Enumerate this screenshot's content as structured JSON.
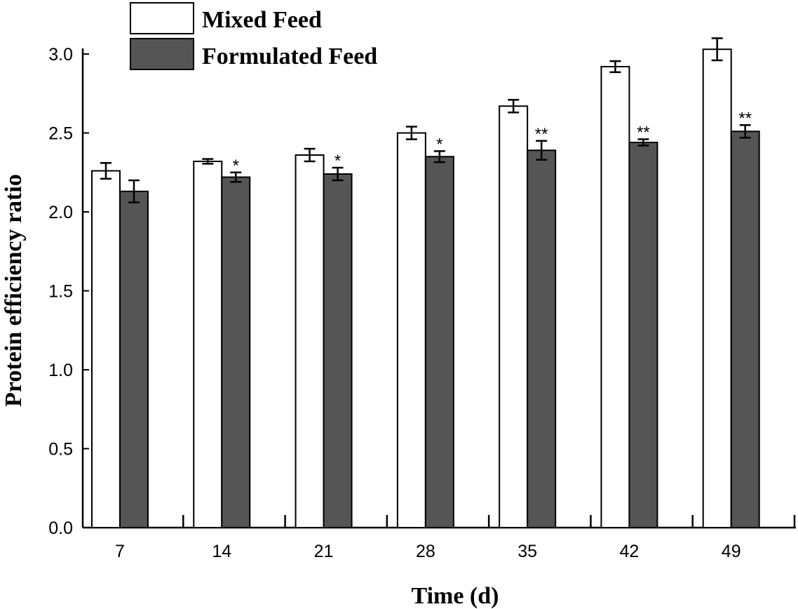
{
  "chart_data": {
    "type": "bar",
    "title": "",
    "xlabel": "Time (d)",
    "ylabel": "Protein efficiency ratio",
    "categories": [
      "7",
      "14",
      "21",
      "28",
      "35",
      "42",
      "49"
    ],
    "ylim": [
      0,
      3.0
    ],
    "yticks": [
      "0.0",
      "0.5",
      "1.0",
      "1.5",
      "2.0",
      "2.5",
      "3.0"
    ],
    "legend_position": "top-left",
    "grid": false,
    "series": [
      {
        "name": "Mixed Feed",
        "color": "#ffffff",
        "values": [
          2.26,
          2.32,
          2.36,
          2.5,
          2.67,
          2.92,
          3.03
        ],
        "errors": [
          0.05,
          0.015,
          0.04,
          0.04,
          0.04,
          0.035,
          0.07
        ],
        "significance": [
          "",
          "",
          "",
          "",
          "",
          "",
          ""
        ]
      },
      {
        "name": "Formulated Feed",
        "color": "#555555",
        "values": [
          2.13,
          2.22,
          2.24,
          2.35,
          2.39,
          2.44,
          2.51
        ],
        "errors": [
          0.07,
          0.03,
          0.04,
          0.035,
          0.06,
          0.02,
          0.04
        ],
        "significance": [
          "",
          "*",
          "*",
          "*",
          "**",
          "**",
          "**"
        ]
      }
    ]
  }
}
